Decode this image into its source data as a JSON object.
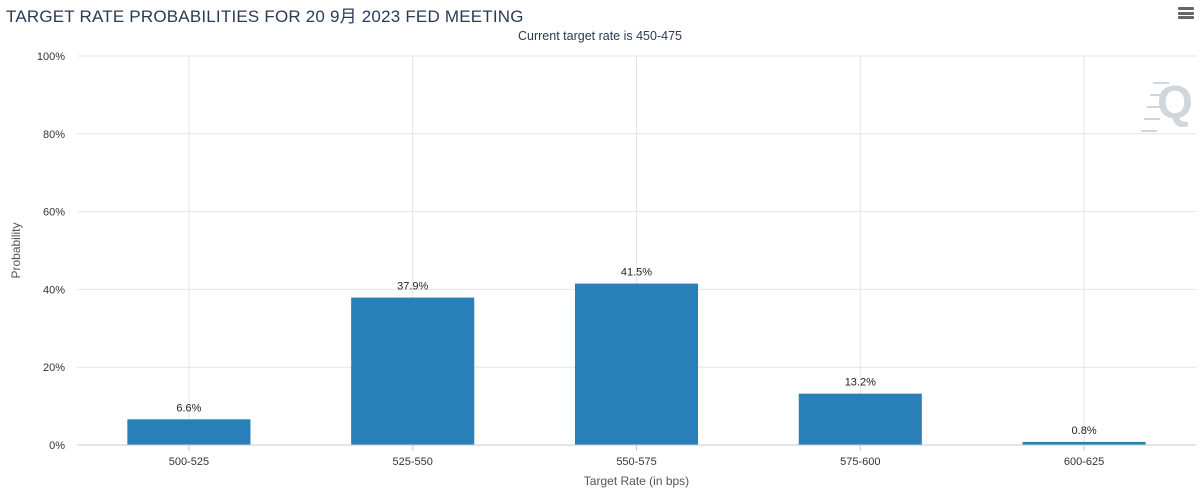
{
  "header": {
    "title": "TARGET RATE PROBABILITIES FOR 20 9月 2023 FED MEETING",
    "subtitle": "Current target rate is 450-475"
  },
  "watermark": {
    "icon": "q-logo-icon",
    "text": "Q",
    "color": "#cfd6dc"
  },
  "colors": {
    "bar": "#2980b9",
    "grid": "#e4e4e4",
    "axis": "#c8c8c8"
  },
  "chart_data": {
    "type": "bar",
    "title": "TARGET RATE PROBABILITIES FOR 20 9月 2023 FED MEETING",
    "subtitle": "Current target rate is 450-475",
    "xlabel": "Target Rate (in bps)",
    "ylabel": "Probability",
    "categories": [
      "500-525",
      "525-550",
      "550-575",
      "575-600",
      "600-625"
    ],
    "values": [
      6.6,
      37.9,
      41.5,
      13.2,
      0.8
    ],
    "data_labels": [
      "6.6%",
      "37.9%",
      "41.5%",
      "13.2%",
      "0.8%"
    ],
    "ylim": [
      0,
      100
    ],
    "yticks": [
      0,
      20,
      40,
      60,
      80,
      100
    ],
    "ytick_labels": [
      "0%",
      "20%",
      "40%",
      "60%",
      "80%",
      "100%"
    ],
    "grid": true,
    "legend": "none"
  }
}
